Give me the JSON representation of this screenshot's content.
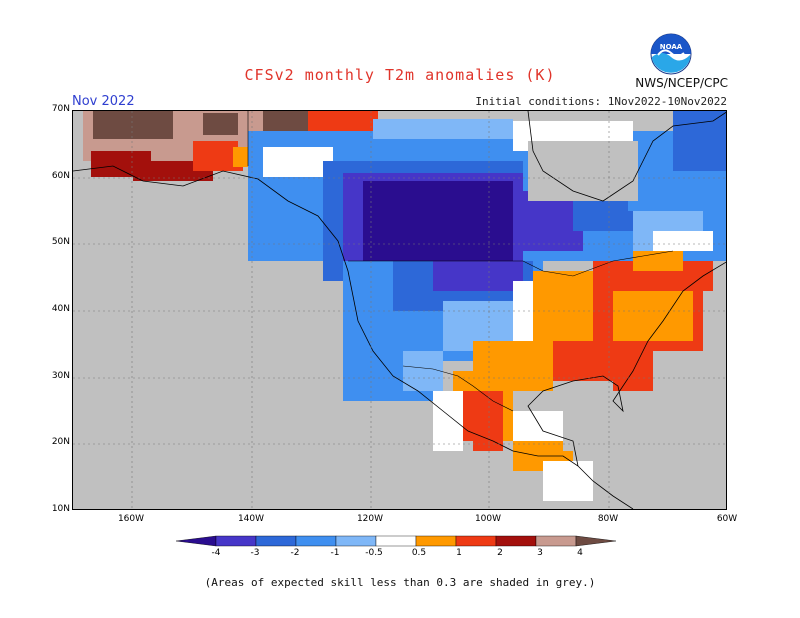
{
  "header": {
    "title": "CFSv2 monthly T2m anomalies (K)",
    "month": "Nov 2022",
    "initial_conditions": "Initial conditions: 1Nov2022-10Nov2022",
    "organization": "NWS/NCEP/CPC",
    "logo_text": "NOAA"
  },
  "axes": {
    "lat_labels": [
      "70N",
      "60N",
      "50N",
      "40N",
      "30N",
      "20N",
      "10N"
    ],
    "lon_labels": [
      "160W",
      "140W",
      "120W",
      "100W",
      "80W",
      "60W"
    ]
  },
  "colorbar": {
    "labels": [
      "-4",
      "-3",
      "-2",
      "-1",
      "-0.5",
      "0.5",
      "1",
      "2",
      "3",
      "4"
    ],
    "colors": [
      "#2a0d8f",
      "#4636c8",
      "#2d68d8",
      "#3f8ff0",
      "#7fb7f7",
      "#ffffff",
      "#ff9900",
      "#ee3a14",
      "#a3100c",
      "#c89a8f",
      "#6e4b42"
    ]
  },
  "legend_colors": {
    "grey_low_skill": "#c0c0c0",
    "land_outline": "#000000"
  },
  "footnote": "(Areas of expected skill less than 0.3 are shaded in grey.)"
}
